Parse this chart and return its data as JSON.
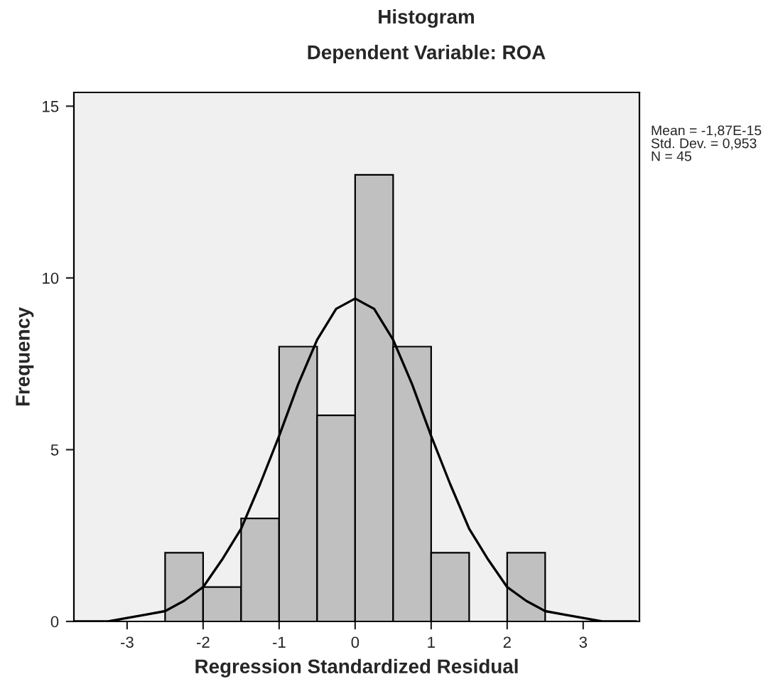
{
  "chart_data": {
    "type": "histogram",
    "title": "Histogram",
    "subtitle": "Dependent Variable: ROA",
    "xlabel": "Regression Standardized Residual",
    "ylabel": "Frequency",
    "bins": [
      -2.5,
      -2,
      -1.5,
      -1,
      -0.5,
      0,
      0.5,
      1,
      1.5,
      2,
      2.5
    ],
    "values": [
      2,
      1,
      3,
      8,
      6,
      13,
      8,
      2,
      0,
      2
    ],
    "color": "#c0c0c0",
    "series": [
      {
        "type": "line",
        "color": "#000000",
        "x": [
          -3.7,
          -3.25,
          -3,
          -2.75,
          -2.5,
          -2.25,
          -2,
          -1.75,
          -1.5,
          -1.25,
          -1,
          -0.75,
          -0.5,
          -0.25,
          0,
          0.25,
          0.5,
          0.75,
          1,
          1.25,
          1.5,
          1.75,
          2,
          2.25,
          2.5,
          2.75,
          3,
          3.25,
          3.7
        ],
        "values": [
          0,
          0,
          0.1,
          0.2,
          0.3,
          0.6,
          1.0,
          1.8,
          2.7,
          4.0,
          5.4,
          6.9,
          8.2,
          9.1,
          9.4,
          9.1,
          8.2,
          6.9,
          5.4,
          4.0,
          2.7,
          1.8,
          1.0,
          0.6,
          0.3,
          0.2,
          0.1,
          0,
          0
        ]
      }
    ],
    "xlim": [
      -3.7,
      3.74
    ],
    "xticks": [
      -3,
      -2,
      -1,
      0,
      1,
      2,
      3
    ],
    "ylim": [
      0,
      15.4
    ],
    "yticks": [
      0,
      5,
      10,
      15
    ],
    "annotations": [
      "Mean = -1,87E-15\nStd. Dev. = 0,953\nN = 45"
    ],
    "grid": false,
    "legend": false
  }
}
